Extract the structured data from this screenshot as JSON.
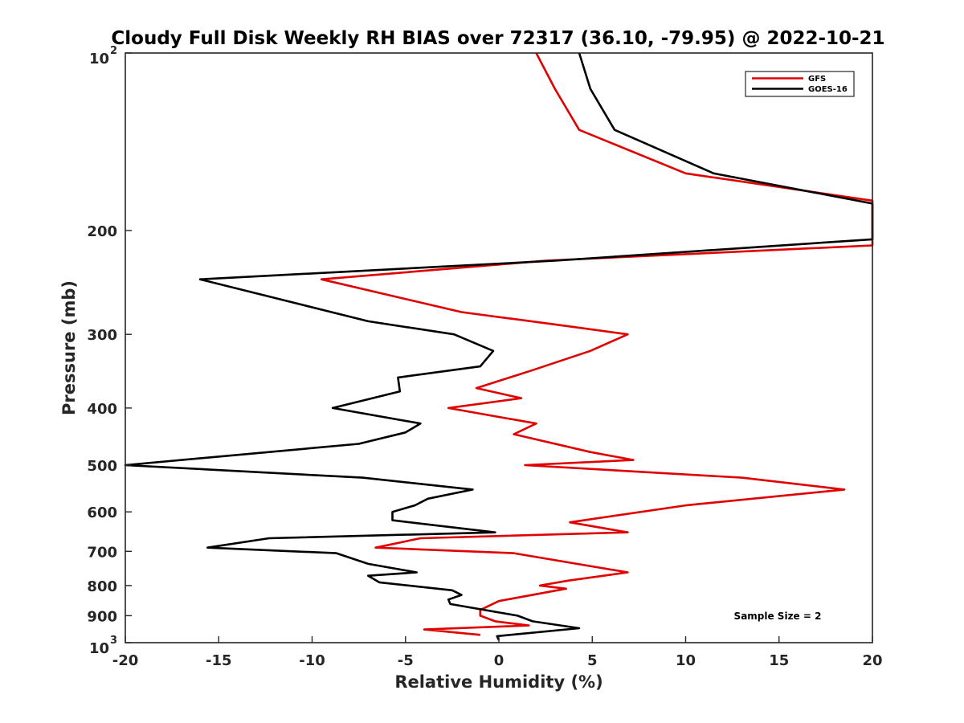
{
  "chart_data": {
    "type": "line",
    "title": "Cloudy Full Disk Weekly RH BIAS over 72317 (36.10, -79.95) @ 2022-10-21",
    "xlabel": "Relative Humidity (%)",
    "ylabel": "Pressure (mb)",
    "xlim": [
      -20,
      20
    ],
    "ylim": [
      100,
      1000
    ],
    "y_scale": "log",
    "y_reversed": true,
    "grid": false,
    "legend_position": "top-right",
    "x_ticks": [
      -20,
      -15,
      -10,
      -5,
      0,
      5,
      10,
      15,
      20
    ],
    "x_tick_labels": [
      "-20",
      "-15",
      "-10",
      "-5",
      "0",
      "5",
      "10",
      "15",
      "20"
    ],
    "y_ticks": [
      100,
      200,
      300,
      400,
      500,
      600,
      700,
      800,
      900,
      1000
    ],
    "y_tick_labels": [
      {
        "base": "10",
        "exp": "2"
      },
      {
        "base": "200",
        "exp": ""
      },
      {
        "base": "300",
        "exp": ""
      },
      {
        "base": "400",
        "exp": ""
      },
      {
        "base": "500",
        "exp": ""
      },
      {
        "base": "600",
        "exp": ""
      },
      {
        "base": "700",
        "exp": ""
      },
      {
        "base": "800",
        "exp": ""
      },
      {
        "base": "900",
        "exp": ""
      },
      {
        "base": "10",
        "exp": "3"
      }
    ],
    "annotation": "Sample Size = 2",
    "series": [
      {
        "name": "GFS",
        "color": "#e00000",
        "points": [
          [
            2.0,
            100
          ],
          [
            3.0,
            115
          ],
          [
            4.3,
            135
          ],
          [
            10.0,
            160
          ],
          [
            20.0,
            178
          ],
          [
            20.0,
            178
          ],
          [
            20.0,
            212
          ],
          [
            2.5,
            225
          ],
          [
            -9.5,
            242
          ],
          [
            -2.0,
            275
          ],
          [
            3.5,
            290
          ],
          [
            6.9,
            300
          ],
          [
            4.9,
            320
          ],
          [
            1.8,
            345
          ],
          [
            -1.2,
            370
          ],
          [
            1.2,
            385
          ],
          [
            -2.7,
            400
          ],
          [
            2.0,
            425
          ],
          [
            0.8,
            443
          ],
          [
            4.9,
            475
          ],
          [
            7.2,
            490
          ],
          [
            1.4,
            500
          ],
          [
            13.0,
            525
          ],
          [
            18.5,
            550
          ],
          [
            10.0,
            585
          ],
          [
            3.8,
            625
          ],
          [
            6.9,
            650
          ],
          [
            -4.2,
            665
          ],
          [
            -6.6,
            690
          ],
          [
            0.8,
            705
          ],
          [
            6.9,
            760
          ],
          [
            3.7,
            785
          ],
          [
            2.2,
            800
          ],
          [
            3.6,
            810
          ],
          [
            0.0,
            850
          ],
          [
            -1.0,
            880
          ],
          [
            -1.0,
            900
          ],
          [
            -0.2,
            920
          ],
          [
            1.6,
            935
          ],
          [
            -4.0,
            950
          ],
          [
            -1.0,
            970
          ]
        ]
      },
      {
        "name": "GOES-16",
        "color": "#000000",
        "points": [
          [
            4.3,
            100
          ],
          [
            4.9,
            115
          ],
          [
            6.2,
            135
          ],
          [
            11.5,
            160
          ],
          [
            20.0,
            180
          ],
          [
            20.0,
            207
          ],
          [
            3.0,
            225
          ],
          [
            -16.0,
            242
          ],
          [
            -7.0,
            285
          ],
          [
            -2.4,
            300
          ],
          [
            -0.3,
            320
          ],
          [
            -1.0,
            340
          ],
          [
            -5.4,
            355
          ],
          [
            -5.3,
            375
          ],
          [
            -8.9,
            400
          ],
          [
            -4.2,
            425
          ],
          [
            -5.0,
            440
          ],
          [
            -7.5,
            460
          ],
          [
            -20.0,
            500
          ],
          [
            -7.3,
            525
          ],
          [
            -1.4,
            550
          ],
          [
            -3.8,
            570
          ],
          [
            -4.5,
            585
          ],
          [
            -5.7,
            600
          ],
          [
            -5.7,
            620
          ],
          [
            -0.2,
            650
          ],
          [
            -12.3,
            665
          ],
          [
            -15.6,
            690
          ],
          [
            -8.7,
            705
          ],
          [
            -7.0,
            735
          ],
          [
            -4.4,
            760
          ],
          [
            -7.0,
            770
          ],
          [
            -6.4,
            790
          ],
          [
            -2.5,
            815
          ],
          [
            -2.0,
            830
          ],
          [
            -2.7,
            845
          ],
          [
            -2.6,
            860
          ],
          [
            1.0,
            900
          ],
          [
            1.8,
            920
          ],
          [
            4.3,
            945
          ],
          [
            -0.1,
            975
          ],
          [
            0.0,
            990
          ]
        ]
      }
    ]
  }
}
